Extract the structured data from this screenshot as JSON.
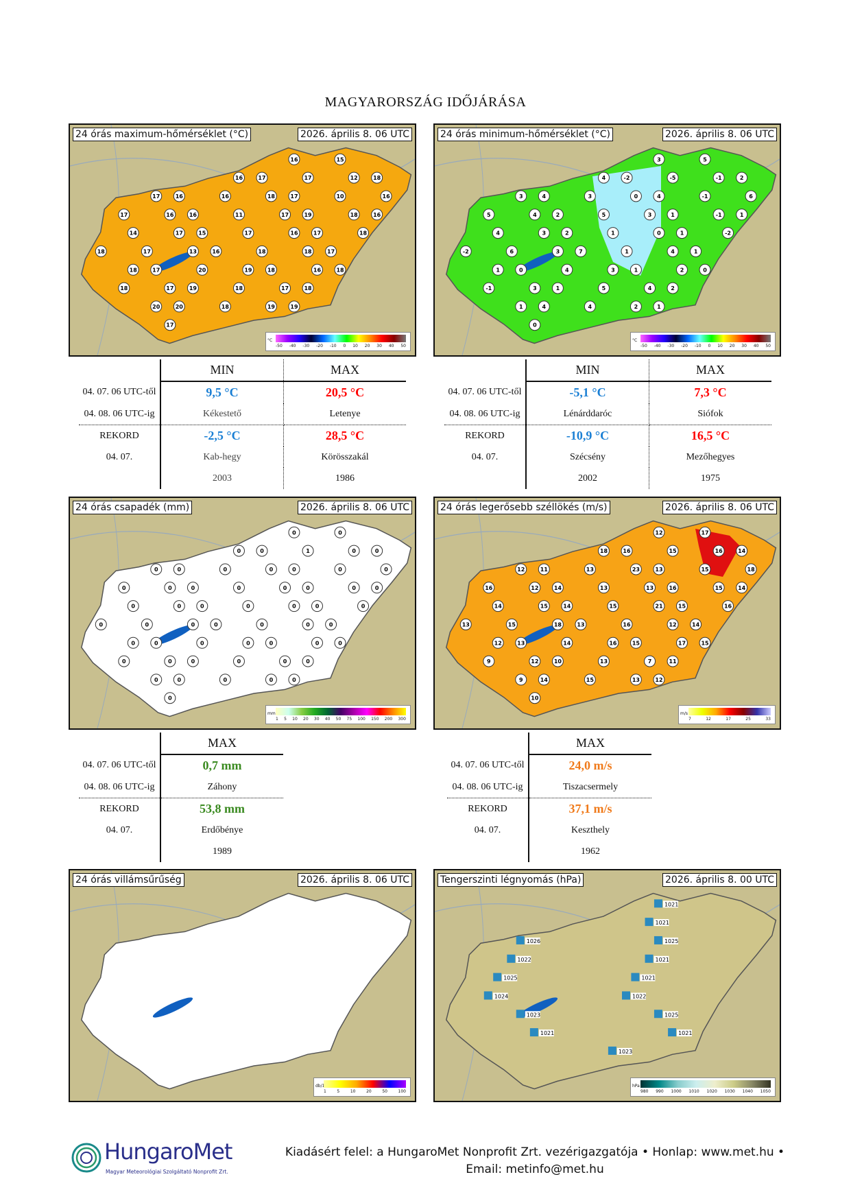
{
  "title": "MAGYARORSZÁG IDŐJÁRÁSA",
  "maps": [
    {
      "id": "tmax",
      "label": "24 órás maximum-hőmérséklet (°C)",
      "date": "2026. április 8. 06 UTC",
      "fill": "#f5a80f",
      "cbar_unit": "°C",
      "cbar_ticks": [
        "-50",
        "-40",
        "-30",
        "-20",
        "-10",
        "0",
        "10",
        "20",
        "30",
        "40",
        "50"
      ],
      "cbar_gradient": "linear-gradient(90deg,#f6f,#90f,#20f,#003,#06f,#6ff,#0f0,#ff0,#f80,#f00,#800,#777)",
      "stations": [
        "16",
        "15",
        "16",
        "17",
        "17",
        "12",
        "18",
        "17",
        "16",
        "16",
        "18",
        "17",
        "10",
        "16",
        "17",
        "16",
        "16",
        "11",
        "17",
        "19",
        "18",
        "16",
        "14",
        "17",
        "15",
        "17",
        "16",
        "17",
        "18",
        "18",
        "17",
        "13",
        "16",
        "18",
        "18",
        "17",
        "18",
        "17",
        "20",
        "19",
        "18",
        "16",
        "18",
        "18",
        "17",
        "19",
        "18",
        "17",
        "18",
        "20",
        "20",
        "18",
        "19",
        "19",
        "17"
      ]
    },
    {
      "id": "tmin",
      "label": "24 órás minimum-hőmérséklet (°C)",
      "date": "2026. április 8. 06 UTC",
      "fill": "#3fe01c",
      "cbar_unit": "°C",
      "cbar_ticks": [
        "-50",
        "-40",
        "-30",
        "-20",
        "-10",
        "0",
        "10",
        "20",
        "30",
        "40",
        "50"
      ],
      "cbar_gradient": "linear-gradient(90deg,#f6f,#90f,#20f,#003,#06f,#6ff,#0f0,#ff0,#f80,#f00,#800,#777)",
      "stations": [
        "3",
        "5",
        "4",
        "-2",
        "-5",
        "-1",
        "2",
        "3",
        "4",
        "3",
        "0",
        "4",
        "-1",
        "6",
        "5",
        "4",
        "2",
        "5",
        "3",
        "1",
        "-1",
        "1",
        "4",
        "3",
        "2",
        "1",
        "0",
        "1",
        "-2",
        "-2",
        "6",
        "3",
        "7",
        "1",
        "4",
        "1",
        "1",
        "0",
        "4",
        "3",
        "1",
        "2",
        "0",
        "-1",
        "3",
        "1",
        "5",
        "4",
        "2",
        "1",
        "4",
        "4",
        "2",
        "1",
        "0"
      ]
    },
    {
      "id": "precip",
      "label": "24 órás csapadék (mm)",
      "date": "2026. április 8. 06 UTC",
      "fill": "#ffffff",
      "cbar_unit": "mm",
      "cbar_ticks": [
        "1",
        "5",
        "10",
        "20",
        "30",
        "40",
        "50",
        "75",
        "100",
        "150",
        "200",
        "300"
      ],
      "cbar_gradient": "linear-gradient(90deg,#ffffc0,#cfe,#8c4,#2a2,#063,#406,#a0a,#f0f,#f00,#f80,#ff0)",
      "stations": [
        "0",
        "0",
        "0",
        "0",
        "1",
        "0",
        "0",
        "0",
        "0",
        "0",
        "0",
        "0",
        "0",
        "0",
        "0",
        "0",
        "0",
        "0",
        "0",
        "0",
        "0",
        "0",
        "0",
        "0",
        "0",
        "0",
        "0",
        "0",
        "0",
        "0",
        "0",
        "0",
        "0",
        "0",
        "0",
        "0",
        "0",
        "0",
        "0",
        "0",
        "0",
        "0",
        "0",
        "0",
        "0",
        "0",
        "0",
        "0",
        "0",
        "0",
        "0",
        "0",
        "0",
        "0",
        "0"
      ]
    },
    {
      "id": "wind",
      "label": "24 órás legerősebb széllökés (m/s)",
      "date": "2026. április 8. 06 UTC",
      "fill": "#f7a316",
      "cbar_unit": "m/s",
      "cbar_ticks": [
        "7",
        "12",
        "17",
        "25",
        "33"
      ],
      "cbar_gradient": "linear-gradient(90deg,#ffffa0,#ef0,#fa0,#f00,#800,#33a,#ccf)",
      "stations": [
        "12",
        "17",
        "18",
        "16",
        "15",
        "16",
        "14",
        "12",
        "11",
        "13",
        "23",
        "13",
        "15",
        "18",
        "16",
        "12",
        "14",
        "13",
        "13",
        "16",
        "15",
        "14",
        "14",
        "15",
        "14",
        "15",
        "21",
        "15",
        "16",
        "13",
        "15",
        "18",
        "13",
        "16",
        "12",
        "14",
        "12",
        "13",
        "14",
        "16",
        "15",
        "17",
        "15",
        "9",
        "12",
        "10",
        "13",
        "7",
        "11",
        "9",
        "14",
        "15",
        "13",
        "12",
        "10"
      ]
    },
    {
      "id": "lightning",
      "label": "24 órás villámsűrűség",
      "date": "2026. április 8. 06 UTC",
      "fill": "#ffffff",
      "cbar_unit": "db/10km2",
      "cbar_ticks": [
        "1",
        "5",
        "10",
        "20",
        "50",
        "100"
      ],
      "cbar_gradient": "linear-gradient(90deg,#ffffa0,#ff0,#fa0,#f00,#00f,#a0f)",
      "stations": []
    },
    {
      "id": "pressure",
      "label": "Tengerszinti légnyomás (hPa)",
      "date": "2026. április 8. 00 UTC",
      "fill": "#cfc58a",
      "cbar_unit": "hPa",
      "cbar_ticks": [
        "980",
        "990",
        "1000",
        "1010",
        "1020",
        "1030",
        "1040",
        "1050"
      ],
      "cbar_gradient": "linear-gradient(90deg,#033,#088,#8cc,#cee,#eec,#cc8,#886,#332)",
      "stations": [
        "1021",
        "1021",
        "1026",
        "1025",
        "1022",
        "1021",
        "1025",
        "1021",
        "1024",
        "1022",
        "1023",
        "1025",
        "1021",
        "1021",
        "1023"
      ]
    }
  ],
  "tables": {
    "temp_left": {
      "header_min": "MIN",
      "header_max": "MAX",
      "row1_a": "04. 07. 06 UTC-től",
      "row1_b": "04. 08. 06 UTC-ig",
      "min_value": "9,5 °C",
      "min_place": "Kékestető",
      "max_value": "20,5 °C",
      "max_place": "Letenye",
      "rec_label": "REKORD",
      "rec_date": "04. 07.",
      "rec_min": "-2,5 °C",
      "rec_min_place": "Kab-hegy",
      "rec_min_year": "2003",
      "rec_max": "28,5 °C",
      "rec_max_place": "Körösszakál",
      "rec_max_year": "1986"
    },
    "temp_right": {
      "header_min": "MIN",
      "header_max": "MAX",
      "row1_a": "04. 07. 06 UTC-től",
      "row1_b": "04. 08. 06 UTC-ig",
      "min_value": "-5,1 °C",
      "min_place": "Lénárddaróc",
      "max_value": "7,3 °C",
      "max_place": "Siófok",
      "rec_label": "REKORD",
      "rec_date": "04. 07.",
      "rec_min": "-10,9 °C",
      "rec_min_place": "Szécsény",
      "rec_min_year": "2002",
      "rec_max": "16,5 °C",
      "rec_max_place": "Mezőhegyes",
      "rec_max_year": "1975"
    },
    "precip": {
      "header_max": "MAX",
      "row1_a": "04. 07. 06 UTC-től",
      "row1_b": "04. 08. 06 UTC-ig",
      "max_value": "0,7 mm",
      "max_place": "Záhony",
      "rec_label": "REKORD",
      "rec_date": "04. 07.",
      "rec_max": "53,8 mm",
      "rec_max_place": "Erdőbénye",
      "rec_max_year": "1989"
    },
    "wind": {
      "header_max": "MAX",
      "row1_a": "04. 07. 06 UTC-től",
      "row1_b": "04. 08. 06 UTC-ig",
      "max_value": "24,0 m/s",
      "max_place": "Tiszacsermely",
      "rec_label": "REKORD",
      "rec_date": "04. 07.",
      "rec_max": "37,1 m/s",
      "rec_max_place": "Keszthely",
      "rec_max_year": "1962"
    }
  },
  "footer": {
    "line1": "Kiadásért felel: a HungaroMet Nonprofit Zrt. vezérigazgatója • Honlap: www.met.hu •",
    "line2": "Email: metinfo@met.hu"
  },
  "logo": {
    "name": "HungaroMet",
    "sub": "Magyar Meteorológiai Szolgáltató Nonprofit Zrt."
  }
}
